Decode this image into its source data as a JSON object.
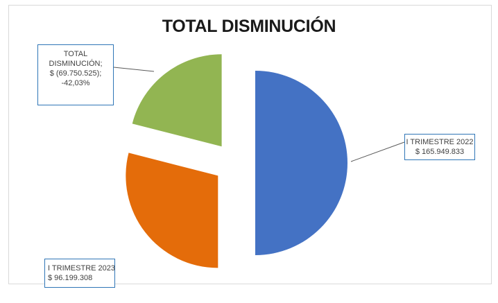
{
  "chart_data": {
    "type": "pie",
    "title": "TOTAL DISMINUCIÓN",
    "slices": [
      {
        "label_lines": [
          "I TRIMESTRE 2022",
          "$ 165.949.833"
        ],
        "value": 165949833,
        "color": "#4472c4"
      },
      {
        "label_lines": [
          "I TRIMESTRE 2023",
          "$ 96.199.308"
        ],
        "value": 96199308,
        "color": "#e46c0a"
      },
      {
        "label_lines": [
          "TOTAL",
          "DISMINUCIÓN;",
          "$ (69.750.525);",
          "-42,03%"
        ],
        "value": 69750525,
        "color": "#92b552"
      }
    ],
    "exploded": true
  }
}
